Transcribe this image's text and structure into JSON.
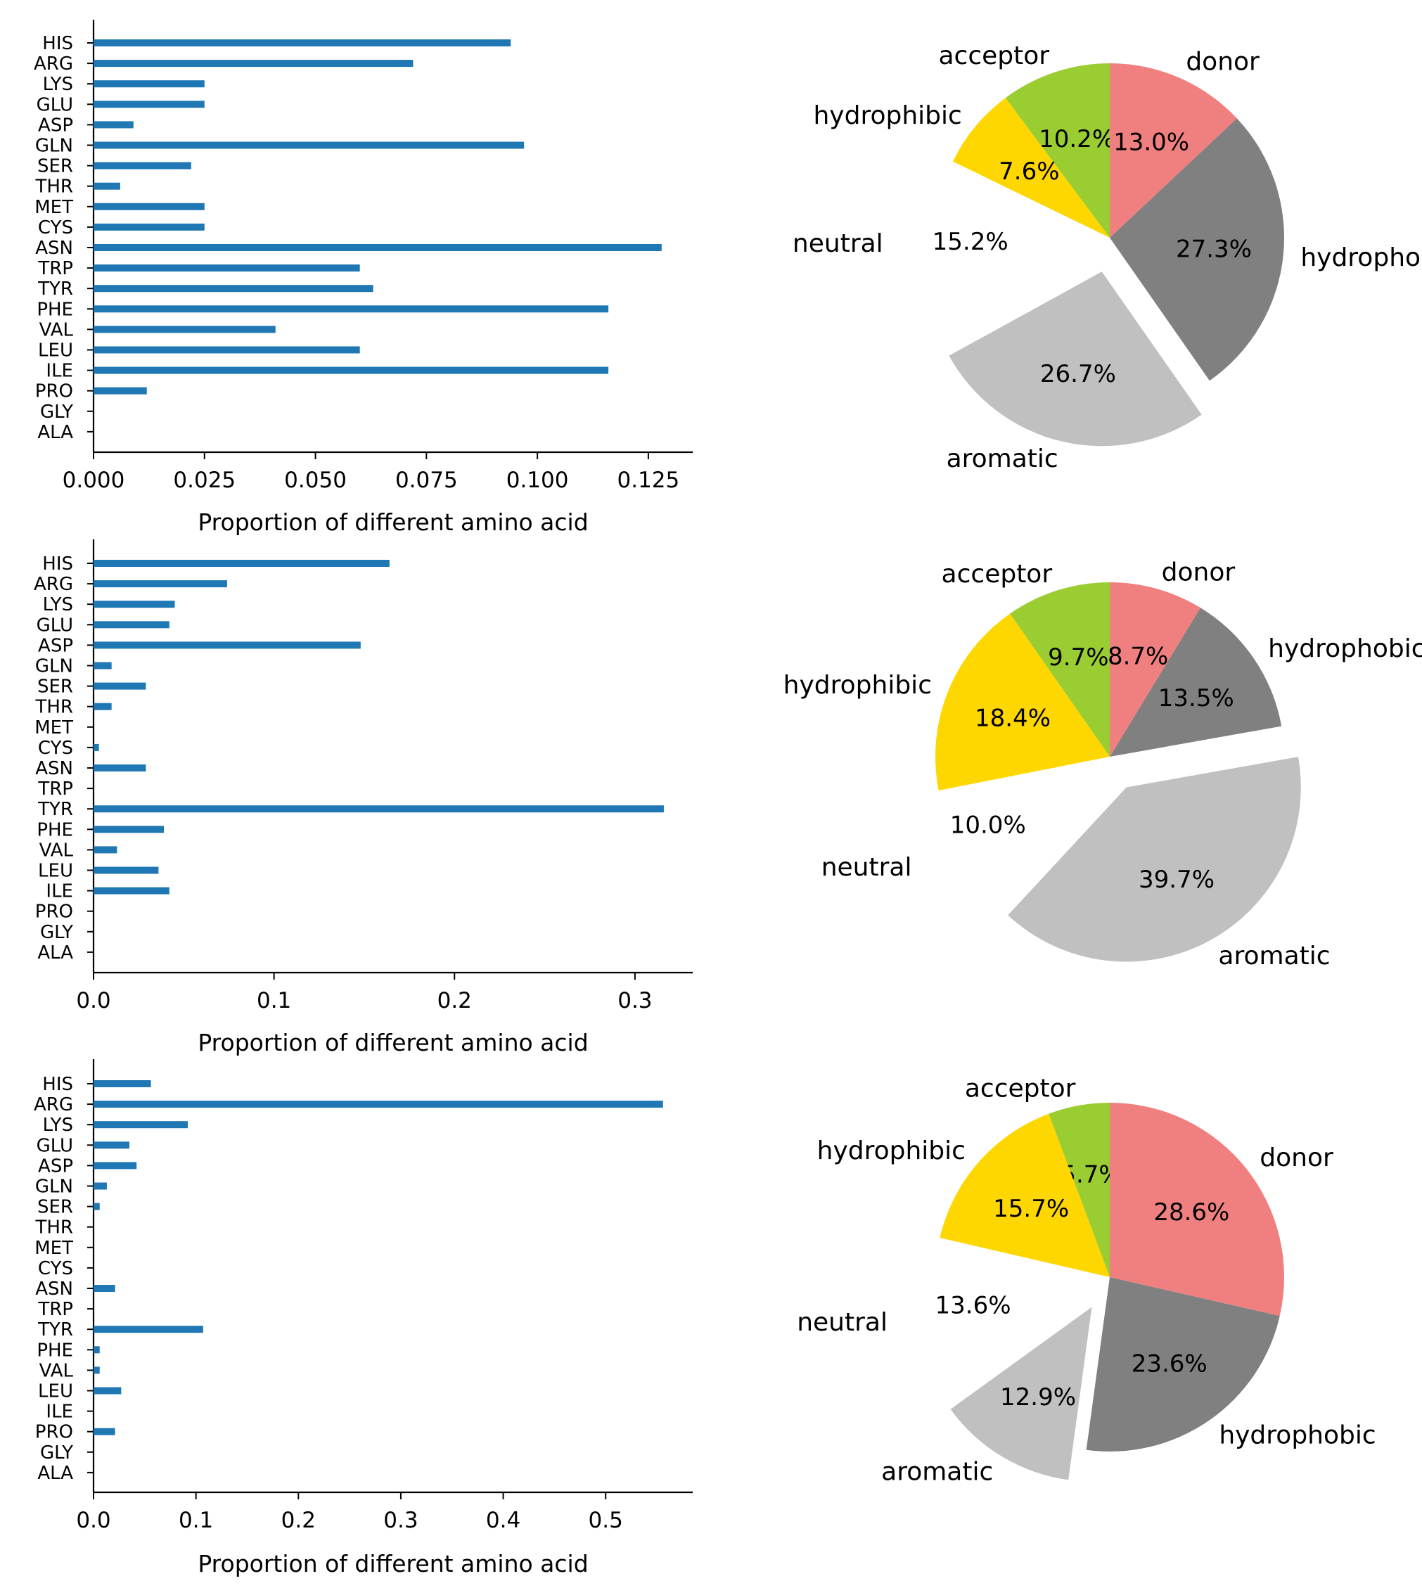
{
  "chart_data": [
    {
      "type": "bar",
      "orientation": "horizontal",
      "categories": [
        "HIS",
        "ARG",
        "LYS",
        "GLU",
        "ASP",
        "GLN",
        "SER",
        "THR",
        "MET",
        "CYS",
        "ASN",
        "TRP",
        "TYR",
        "PHE",
        "VAL",
        "LEU",
        "ILE",
        "PRO",
        "GLY",
        "ALA"
      ],
      "values": [
        0.094,
        0.072,
        0.025,
        0.025,
        0.009,
        0.097,
        0.022,
        0.006,
        0.025,
        0.025,
        0.128,
        0.06,
        0.063,
        0.116,
        0.041,
        0.06,
        0.116,
        0.012,
        0.0,
        0.0
      ],
      "xlabel": "Proportion of different amino acid",
      "xticks": [
        "0.000",
        "0.025",
        "0.050",
        "0.075",
        "0.100",
        "0.125"
      ],
      "xtick_values": [
        0,
        0.025,
        0.05,
        0.075,
        0.1,
        0.125
      ],
      "xlim": [
        0,
        0.135
      ],
      "color": "#1f77b4"
    },
    {
      "type": "pie",
      "labels": [
        "acceptor",
        "hydrophibic",
        "neutral",
        "aromatic",
        "hydrophobic",
        "donor"
      ],
      "values": [
        10.2,
        7.6,
        15.2,
        26.7,
        27.3,
        13.0
      ],
      "autopct": [
        "10.2%",
        "7.6%",
        "15.2%",
        "26.7%",
        "27.3%",
        "13.0%"
      ],
      "colors": [
        "#9acd32",
        "#ffd700",
        "#ffffff",
        "#c0c0c0",
        "#808080",
        "#f08080"
      ],
      "explode": [
        0,
        0,
        0.2,
        0.2,
        0,
        0
      ],
      "startangle": 90,
      "direction": "counterclockwise"
    },
    {
      "type": "bar",
      "orientation": "horizontal",
      "categories": [
        "HIS",
        "ARG",
        "LYS",
        "GLU",
        "ASP",
        "GLN",
        "SER",
        "THR",
        "MET",
        "CYS",
        "ASN",
        "TRP",
        "TYR",
        "PHE",
        "VAL",
        "LEU",
        "ILE",
        "PRO",
        "GLY",
        "ALA"
      ],
      "values": [
        0.164,
        0.074,
        0.045,
        0.042,
        0.148,
        0.01,
        0.029,
        0.01,
        0.0,
        0.003,
        0.029,
        0.0,
        0.316,
        0.039,
        0.013,
        0.036,
        0.042,
        0.0,
        0.0,
        0.0
      ],
      "xlabel": "Proportion of different amino acid",
      "xticks": [
        "0.0",
        "0.1",
        "0.2",
        "0.3"
      ],
      "xtick_values": [
        0,
        0.1,
        0.2,
        0.3
      ],
      "xlim": [
        0,
        0.332
      ],
      "color": "#1f77b4"
    },
    {
      "type": "pie",
      "labels": [
        "acceptor",
        "hydrophibic",
        "neutral",
        "aromatic",
        "hydrophobic",
        "donor"
      ],
      "values": [
        9.7,
        18.4,
        10.0,
        39.7,
        13.5,
        8.7
      ],
      "autopct": [
        "9.7%",
        "18.4%",
        "10.0%",
        "39.7%",
        "13.5%",
        "8.7%"
      ],
      "colors": [
        "#9acd32",
        "#ffd700",
        "#ffffff",
        "#c0c0c0",
        "#808080",
        "#f08080"
      ],
      "explode": [
        0,
        0,
        0.2,
        0.2,
        0,
        0
      ],
      "startangle": 90,
      "direction": "counterclockwise"
    },
    {
      "type": "bar",
      "orientation": "horizontal",
      "categories": [
        "HIS",
        "ARG",
        "LYS",
        "GLU",
        "ASP",
        "GLN",
        "SER",
        "THR",
        "MET",
        "CYS",
        "ASN",
        "TRP",
        "TYR",
        "PHE",
        "VAL",
        "LEU",
        "ILE",
        "PRO",
        "GLY",
        "ALA"
      ],
      "values": [
        0.056,
        0.556,
        0.092,
        0.035,
        0.042,
        0.013,
        0.006,
        0.0,
        0.0,
        0.0,
        0.021,
        0.0,
        0.107,
        0.006,
        0.006,
        0.027,
        0.0,
        0.021,
        0.0,
        0.0
      ],
      "xlabel": "Proportion of different amino acid",
      "xticks": [
        "0.0",
        "0.1",
        "0.2",
        "0.3",
        "0.4",
        "0.5"
      ],
      "xtick_values": [
        0,
        0.1,
        0.2,
        0.3,
        0.4,
        0.5
      ],
      "xlim": [
        0,
        0.585
      ],
      "color": "#1f77b4"
    },
    {
      "type": "pie",
      "labels": [
        "acceptor",
        "hydrophibic",
        "neutral",
        "aromatic",
        "hydrophobic",
        "donor"
      ],
      "values": [
        5.7,
        15.7,
        13.6,
        12.9,
        23.6,
        28.6
      ],
      "autopct": [
        "5.7%",
        "15.7%",
        "13.6%",
        "12.9%",
        "23.6%",
        "28.6%"
      ],
      "colors": [
        "#9acd32",
        "#ffd700",
        "#ffffff",
        "#c0c0c0",
        "#808080",
        "#f08080"
      ],
      "explode": [
        0,
        0,
        0.2,
        0.2,
        0,
        0
      ],
      "startangle": 90,
      "direction": "counterclockwise"
    }
  ]
}
